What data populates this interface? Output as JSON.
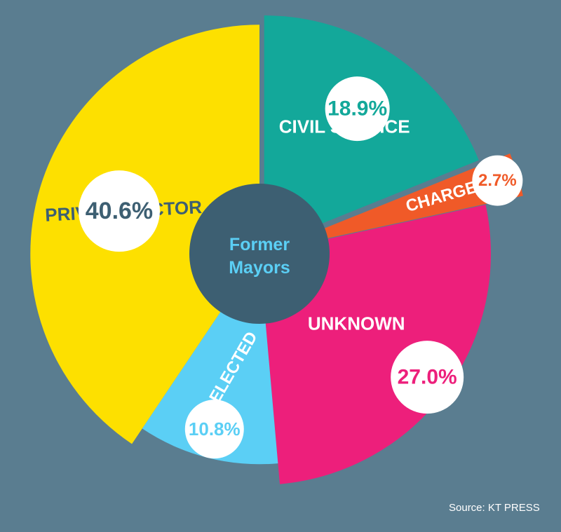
{
  "background": "#5a7d90",
  "center_label": {
    "line1": "Former",
    "line2": "Mayors",
    "color": "#5bcff5",
    "fill": "#3d5f72"
  },
  "source": "Source: KT PRESS",
  "chart_data": {
    "type": "pie",
    "title": "",
    "start_angle_deg": 0,
    "slices": [
      {
        "label": "CIVIL SERVICE",
        "value": 18.9,
        "value_text": "18.9%",
        "color": "#13a89a",
        "label_color": "#ffffff",
        "value_color": "#13a89a",
        "exploded": true,
        "radial_scale": 1.0
      },
      {
        "label": "CHARGED",
        "value": 2.7,
        "value_text": "2.7%",
        "color": "#f05a28",
        "label_color": "#ffffff",
        "value_color": "#f05a28",
        "exploded": true,
        "radial_scale": 1.13
      },
      {
        "label": "UNKNOWN",
        "value": 27.0,
        "value_text": "27.0%",
        "color": "#ed1f7b",
        "label_color": "#ffffff",
        "value_color": "#ed1f7b",
        "exploded": false,
        "radial_scale": 1.0
      },
      {
        "label": "RE-ELECTED",
        "value": 10.8,
        "value_text": "10.8%",
        "color": "#5bcff5",
        "label_color": "#ffffff",
        "value_color": "#5bcff5",
        "exploded": false,
        "radial_scale": 0.91
      },
      {
        "label": "PRIVATE SECTOR",
        "value": 40.6,
        "value_text": "40.6%",
        "color": "#fde000",
        "label_color": "#3d5f72",
        "value_color": "#3d5f72",
        "exploded": false,
        "radial_scale": 0.99
      }
    ]
  }
}
